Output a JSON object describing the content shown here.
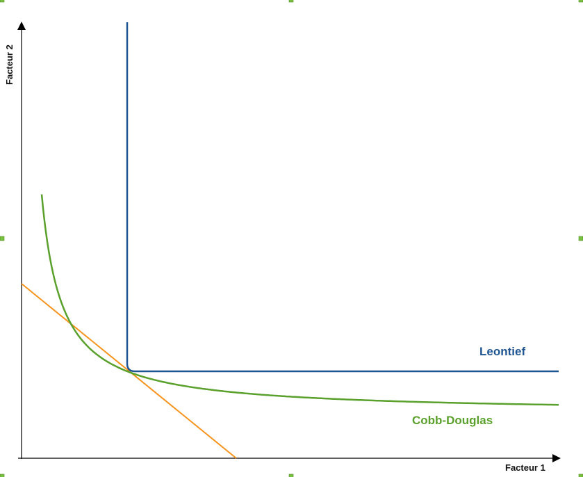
{
  "axes": {
    "x_title": "Facteur 1",
    "y_title": "Facteur 2"
  },
  "curves": {
    "leontief": {
      "label": "Leontief",
      "color": "#1f5592"
    },
    "cobb_douglas": {
      "label": "Cobb-Douglas",
      "color": "#5aa02c"
    },
    "budget_line": {
      "color": "#f7941d"
    }
  },
  "colors": {
    "axis": "#000000",
    "selection_handle": "#7ac143"
  }
}
